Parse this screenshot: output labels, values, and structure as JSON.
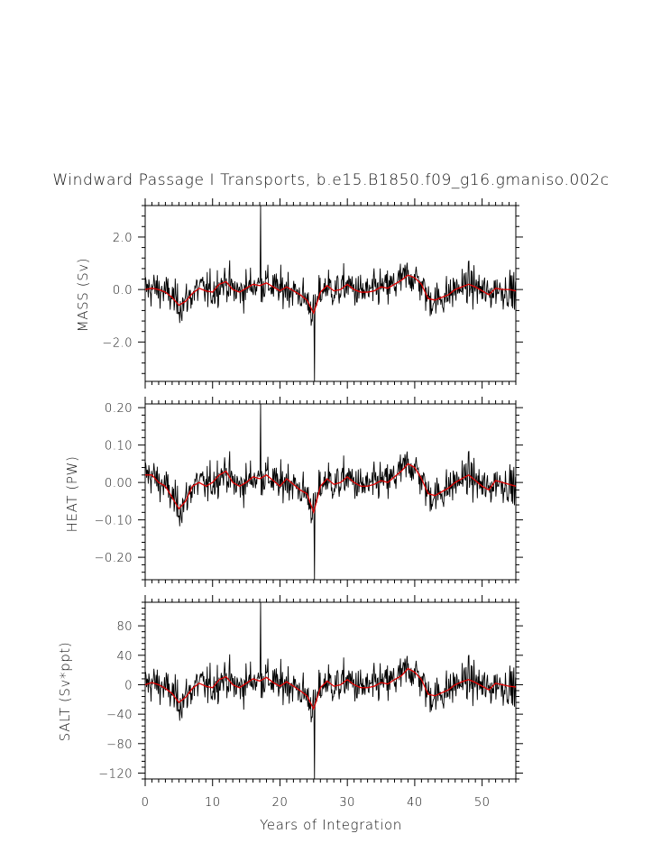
{
  "chart_data": {
    "type": "line",
    "title": "Windward Passage I Transports, b.e15.B1850.f09_g16.gmaniso.002c",
    "xlabel": "Years of Integration",
    "xlim": [
      0,
      55
    ],
    "x_ticks": [
      0,
      10,
      20,
      30,
      40,
      50
    ],
    "x_tick_labels": [
      "0",
      "10",
      "20",
      "30",
      "40",
      "50"
    ],
    "series_colors": {
      "monthly": "#000000",
      "smoothed": "#e00000"
    },
    "panels": [
      {
        "ylabel": "MASS (Sv)",
        "ylim": [
          -3.5,
          3.2
        ],
        "y_ticks": [
          -2.0,
          0.0,
          2.0
        ],
        "y_tick_labels": [
          "−2.0",
          "0.0",
          "2.0"
        ],
        "amplitude": 0.7,
        "spike_max": [
          17.1,
          3.2
        ],
        "spike_min": [
          25.1,
          -3.5
        ],
        "smoothed": [
          [
            0,
            0.0
          ],
          [
            1,
            0.05
          ],
          [
            2,
            0.0
          ],
          [
            3,
            -0.1
          ],
          [
            4,
            -0.3
          ],
          [
            5,
            -0.6
          ],
          [
            6,
            -0.45
          ],
          [
            7,
            -0.15
          ],
          [
            8,
            0.05
          ],
          [
            9,
            -0.05
          ],
          [
            10,
            -0.1
          ],
          [
            11,
            0.2
          ],
          [
            12,
            0.3
          ],
          [
            13,
            0.0
          ],
          [
            14,
            -0.1
          ],
          [
            15,
            0.05
          ],
          [
            16,
            0.2
          ],
          [
            17,
            0.15
          ],
          [
            18,
            0.25
          ],
          [
            19,
            0.1
          ],
          [
            20,
            -0.05
          ],
          [
            21,
            0.1
          ],
          [
            22,
            -0.05
          ],
          [
            23,
            -0.2
          ],
          [
            24,
            -0.4
          ],
          [
            25,
            -0.9
          ],
          [
            26,
            -0.1
          ],
          [
            27,
            0.15
          ],
          [
            28,
            -0.05
          ],
          [
            29,
            0.0
          ],
          [
            30,
            0.2
          ],
          [
            31,
            0.0
          ],
          [
            32,
            -0.1
          ],
          [
            33,
            -0.1
          ],
          [
            34,
            -0.05
          ],
          [
            35,
            0.1
          ],
          [
            36,
            0.05
          ],
          [
            37,
            0.2
          ],
          [
            38,
            0.35
          ],
          [
            39,
            0.55
          ],
          [
            40,
            0.45
          ],
          [
            41,
            0.2
          ],
          [
            42,
            -0.35
          ],
          [
            43,
            -0.4
          ],
          [
            44,
            -0.3
          ],
          [
            45,
            -0.2
          ],
          [
            46,
            0.0
          ],
          [
            47,
            0.1
          ],
          [
            48,
            0.2
          ],
          [
            49,
            0.1
          ],
          [
            50,
            -0.05
          ],
          [
            51,
            -0.2
          ],
          [
            52,
            0.05
          ],
          [
            53,
            0.0
          ],
          [
            54,
            0.0
          ],
          [
            55,
            -0.05
          ]
        ]
      },
      {
        "ylabel": "HEAT (PW)",
        "ylim": [
          -0.26,
          0.21
        ],
        "y_ticks": [
          -0.2,
          -0.1,
          0.0,
          0.1,
          0.2
        ],
        "y_tick_labels": [
          "−0.20",
          "−0.10",
          "0.00",
          "0.10",
          "0.20"
        ],
        "amplitude": 0.05,
        "spike_max": [
          17.1,
          0.21
        ],
        "spike_min": [
          25.1,
          -0.26
        ],
        "smoothed": [
          [
            0,
            0.02
          ],
          [
            1,
            0.02
          ],
          [
            2,
            0.0
          ],
          [
            3,
            -0.01
          ],
          [
            4,
            -0.04
          ],
          [
            5,
            -0.07
          ],
          [
            6,
            -0.05
          ],
          [
            7,
            -0.01
          ],
          [
            8,
            0.0
          ],
          [
            9,
            -0.01
          ],
          [
            10,
            0.0
          ],
          [
            11,
            0.02
          ],
          [
            12,
            0.03
          ],
          [
            13,
            0.0
          ],
          [
            14,
            -0.01
          ],
          [
            15,
            0.0
          ],
          [
            16,
            0.015
          ],
          [
            17,
            0.01
          ],
          [
            18,
            0.02
          ],
          [
            19,
            0.005
          ],
          [
            20,
            -0.01
          ],
          [
            21,
            0.01
          ],
          [
            22,
            -0.005
          ],
          [
            23,
            -0.02
          ],
          [
            24,
            -0.03
          ],
          [
            25,
            -0.08
          ],
          [
            26,
            -0.01
          ],
          [
            27,
            0.01
          ],
          [
            28,
            -0.005
          ],
          [
            29,
            0.0
          ],
          [
            30,
            0.015
          ],
          [
            31,
            0.0
          ],
          [
            32,
            -0.01
          ],
          [
            33,
            -0.01
          ],
          [
            34,
            -0.005
          ],
          [
            35,
            0.005
          ],
          [
            36,
            0.0
          ],
          [
            37,
            0.015
          ],
          [
            38,
            0.03
          ],
          [
            39,
            0.05
          ],
          [
            40,
            0.04
          ],
          [
            41,
            0.01
          ],
          [
            42,
            -0.03
          ],
          [
            43,
            -0.035
          ],
          [
            44,
            -0.025
          ],
          [
            45,
            -0.015
          ],
          [
            46,
            0.0
          ],
          [
            47,
            0.01
          ],
          [
            48,
            0.02
          ],
          [
            49,
            0.005
          ],
          [
            50,
            -0.01
          ],
          [
            51,
            -0.02
          ],
          [
            52,
            0.005
          ],
          [
            53,
            0.0
          ],
          [
            54,
            -0.005
          ],
          [
            55,
            -0.01
          ]
        ]
      },
      {
        "ylabel": "SALT (Sv*ppt)",
        "ylim": [
          -128,
          112
        ],
        "y_ticks": [
          -120,
          -80,
          -40,
          0,
          40,
          80
        ],
        "y_tick_labels": [
          "−120",
          "−80",
          "−40",
          "0",
          "40",
          "80"
        ],
        "amplitude": 26,
        "spike_max": [
          17.1,
          112
        ],
        "spike_min": [
          25.1,
          -128
        ],
        "smoothed": [
          [
            0,
            0
          ],
          [
            1,
            3
          ],
          [
            2,
            0
          ],
          [
            3,
            -5
          ],
          [
            4,
            -12
          ],
          [
            5,
            -24
          ],
          [
            6,
            -17
          ],
          [
            7,
            -5
          ],
          [
            8,
            2
          ],
          [
            9,
            -2
          ],
          [
            10,
            -4
          ],
          [
            11,
            7
          ],
          [
            12,
            11
          ],
          [
            13,
            0
          ],
          [
            14,
            -4
          ],
          [
            15,
            2
          ],
          [
            16,
            8
          ],
          [
            17,
            5
          ],
          [
            18,
            10
          ],
          [
            19,
            3
          ],
          [
            20,
            -2
          ],
          [
            21,
            4
          ],
          [
            22,
            -2
          ],
          [
            23,
            -8
          ],
          [
            24,
            -15
          ],
          [
            25,
            -33
          ],
          [
            26,
            -4
          ],
          [
            27,
            5
          ],
          [
            28,
            -2
          ],
          [
            29,
            0
          ],
          [
            30,
            7
          ],
          [
            31,
            0
          ],
          [
            32,
            -4
          ],
          [
            33,
            -4
          ],
          [
            34,
            -2
          ],
          [
            35,
            3
          ],
          [
            36,
            1
          ],
          [
            37,
            7
          ],
          [
            38,
            12
          ],
          [
            39,
            22
          ],
          [
            40,
            17
          ],
          [
            41,
            7
          ],
          [
            42,
            -13
          ],
          [
            43,
            -15
          ],
          [
            44,
            -11
          ],
          [
            45,
            -7
          ],
          [
            46,
            0
          ],
          [
            47,
            4
          ],
          [
            48,
            7
          ],
          [
            49,
            3
          ],
          [
            50,
            -2
          ],
          [
            51,
            -7
          ],
          [
            52,
            2
          ],
          [
            53,
            0
          ],
          [
            54,
            -2
          ],
          [
            55,
            -3
          ]
        ]
      }
    ]
  }
}
